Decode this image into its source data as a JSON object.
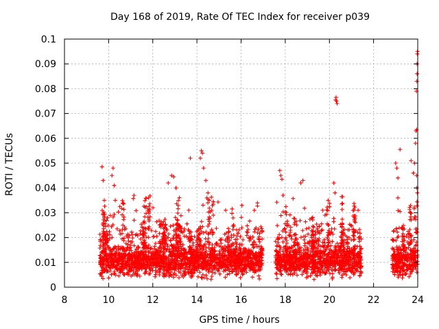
{
  "chart_data": {
    "type": "scatter",
    "title": "Day 168 of 2019, Rate Of TEC Index for receiver p039",
    "xlabel": "GPS time / hours",
    "ylabel": "ROTI / TECUs",
    "xlim": [
      8,
      24
    ],
    "ylim": [
      0,
      0.1
    ],
    "xticks": [
      8,
      10,
      12,
      14,
      16,
      18,
      20,
      22,
      24
    ],
    "yticks": [
      0,
      0.01,
      0.02,
      0.03,
      0.04,
      0.05,
      0.06,
      0.07,
      0.08,
      0.09,
      0.1
    ],
    "ytick_labels": [
      "0",
      "0.01",
      "0.02",
      "0.03",
      "0.04",
      "0.05",
      "0.06",
      "0.07",
      "0.08",
      "0.09",
      "0.1"
    ],
    "grid": true,
    "marker": "+",
    "series": [
      {
        "name": "ROTI",
        "color": "#ff0000",
        "segments": [
          {
            "start": 9.6,
            "end": 16.95,
            "base": 0.0105,
            "spread": 0.0055
          },
          {
            "start": 17.55,
            "end": 21.45,
            "base": 0.0105,
            "spread": 0.0055
          },
          {
            "start": 22.85,
            "end": 24.0,
            "base": 0.0105,
            "spread": 0.006
          }
        ],
        "highlights": [
          {
            "x": 9.7,
            "y": 0.0485
          },
          {
            "x": 9.75,
            "y": 0.043
          },
          {
            "x": 9.8,
            "y": 0.035
          },
          {
            "x": 10.2,
            "y": 0.048
          },
          {
            "x": 10.15,
            "y": 0.045
          },
          {
            "x": 10.25,
            "y": 0.041
          },
          {
            "x": 10.3,
            "y": 0.035
          },
          {
            "x": 11.15,
            "y": 0.037
          },
          {
            "x": 11.8,
            "y": 0.036
          },
          {
            "x": 12.7,
            "y": 0.042
          },
          {
            "x": 12.85,
            "y": 0.045
          },
          {
            "x": 12.95,
            "y": 0.0445
          },
          {
            "x": 13.05,
            "y": 0.04
          },
          {
            "x": 13.7,
            "y": 0.052
          },
          {
            "x": 14.2,
            "y": 0.055
          },
          {
            "x": 14.25,
            "y": 0.054
          },
          {
            "x": 14.15,
            "y": 0.052
          },
          {
            "x": 14.3,
            "y": 0.048
          },
          {
            "x": 14.4,
            "y": 0.043
          },
          {
            "x": 14.5,
            "y": 0.038
          },
          {
            "x": 14.45,
            "y": 0.036
          },
          {
            "x": 15.3,
            "y": 0.031
          },
          {
            "x": 16.6,
            "y": 0.031
          },
          {
            "x": 17.75,
            "y": 0.047
          },
          {
            "x": 17.8,
            "y": 0.045
          },
          {
            "x": 17.85,
            "y": 0.0435
          },
          {
            "x": 17.9,
            "y": 0.037
          },
          {
            "x": 18.8,
            "y": 0.043
          },
          {
            "x": 18.7,
            "y": 0.042
          },
          {
            "x": 19.8,
            "y": 0.029
          },
          {
            "x": 20.2,
            "y": 0.042
          },
          {
            "x": 20.25,
            "y": 0.038
          },
          {
            "x": 20.3,
            "y": 0.0765
          },
          {
            "x": 20.32,
            "y": 0.075
          },
          {
            "x": 20.35,
            "y": 0.074
          },
          {
            "x": 20.28,
            "y": 0.0755
          },
          {
            "x": 21.3,
            "y": 0.031
          },
          {
            "x": 23.0,
            "y": 0.05
          },
          {
            "x": 23.05,
            "y": 0.048
          },
          {
            "x": 23.1,
            "y": 0.044
          },
          {
            "x": 23.2,
            "y": 0.0555
          },
          {
            "x": 23.1,
            "y": 0.036
          },
          {
            "x": 23.7,
            "y": 0.051
          },
          {
            "x": 23.8,
            "y": 0.046
          },
          {
            "x": 23.85,
            "y": 0.05
          },
          {
            "x": 23.9,
            "y": 0.058
          },
          {
            "x": 23.92,
            "y": 0.063
          },
          {
            "x": 23.95,
            "y": 0.0635
          },
          {
            "x": 23.94,
            "y": 0.079
          },
          {
            "x": 23.96,
            "y": 0.083
          },
          {
            "x": 23.97,
            "y": 0.086
          },
          {
            "x": 23.98,
            "y": 0.094
          },
          {
            "x": 23.99,
            "y": 0.095
          },
          {
            "x": 23.97,
            "y": 0.09
          },
          {
            "x": 23.95,
            "y": 0.045
          },
          {
            "x": 23.96,
            "y": 0.04
          },
          {
            "x": 23.98,
            "y": 0.038
          }
        ]
      }
    ]
  }
}
